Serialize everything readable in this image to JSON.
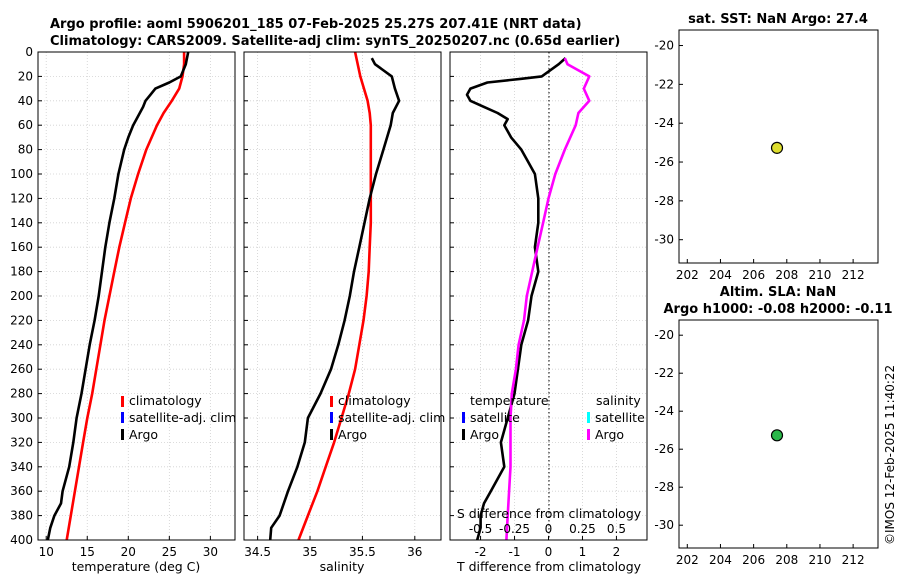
{
  "chart_data": [
    {
      "type": "line",
      "title": "Argo profile: aoml 5906201_185 07-Feb-2025 25.27S 207.41E (NRT data)",
      "subtitle": "Climatology: CARS2009. Satellite-adj clim: synTS_20250207.nc (0.65d earlier)",
      "xlabel": "temperature (deg C)",
      "ylabel": "",
      "xlim": [
        9,
        33
      ],
      "ylim": [
        400,
        0
      ],
      "xticks": [
        "10",
        "15",
        "20",
        "25",
        "30"
      ],
      "yticks": [
        "0",
        "20",
        "40",
        "60",
        "80",
        "100",
        "120",
        "140",
        "160",
        "180",
        "200",
        "220",
        "240",
        "260",
        "280",
        "300",
        "320",
        "340",
        "360",
        "380",
        "400"
      ],
      "grid": true,
      "legend": [
        "climatology",
        "satellite-adj. clim",
        "Argo"
      ],
      "legend_colors": [
        "#ff0000",
        "#0000ff",
        "#000000"
      ],
      "series": [
        {
          "name": "climatology",
          "color": "#ff0000",
          "depth": [
            0,
            10,
            20,
            30,
            40,
            50,
            60,
            80,
            100,
            120,
            140,
            160,
            180,
            200,
            220,
            240,
            260,
            280,
            300,
            320,
            340,
            360,
            380,
            400
          ],
          "values": [
            26.8,
            26.8,
            26.6,
            26.2,
            25.3,
            24.3,
            23.5,
            22.2,
            21.2,
            20.3,
            19.6,
            18.9,
            18.3,
            17.7,
            17.1,
            16.6,
            16.1,
            15.6,
            15.0,
            14.5,
            14.0,
            13.5,
            13.0,
            12.5
          ]
        },
        {
          "name": "Argo",
          "color": "#000000",
          "depth": [
            0,
            10,
            20,
            25,
            30,
            35,
            40,
            45,
            50,
            55,
            60,
            70,
            80,
            100,
            120,
            140,
            160,
            180,
            200,
            220,
            240,
            260,
            280,
            300,
            320,
            340,
            360,
            370,
            380,
            390,
            400
          ],
          "values": [
            27.3,
            27.0,
            26.4,
            25.0,
            23.3,
            22.7,
            22.1,
            21.8,
            21.4,
            21.0,
            20.6,
            20.0,
            19.5,
            18.8,
            18.3,
            17.7,
            17.2,
            16.8,
            16.4,
            15.9,
            15.3,
            14.8,
            14.3,
            13.7,
            13.3,
            12.8,
            12.0,
            11.8,
            11.0,
            10.5,
            10.2
          ]
        }
      ]
    },
    {
      "type": "line",
      "xlabel": "salinity",
      "xlim": [
        34.37,
        36.25
      ],
      "ylim": [
        400,
        0
      ],
      "xticks": [
        "34.5",
        "35",
        "35.5",
        "36"
      ],
      "grid": true,
      "legend": [
        "climatology",
        "satellite-adj. clim",
        "Argo"
      ],
      "legend_colors": [
        "#ff0000",
        "#0000ff",
        "#000000"
      ],
      "series": [
        {
          "name": "climatology",
          "color": "#ff0000",
          "depth": [
            0,
            20,
            40,
            50,
            60,
            80,
            100,
            120,
            140,
            160,
            180,
            200,
            220,
            240,
            260,
            280,
            300,
            320,
            340,
            360,
            380,
            400
          ],
          "values": [
            35.43,
            35.48,
            35.55,
            35.57,
            35.58,
            35.58,
            35.58,
            35.58,
            35.58,
            35.57,
            35.56,
            35.54,
            35.51,
            35.47,
            35.43,
            35.37,
            35.3,
            35.23,
            35.15,
            35.07,
            34.98,
            34.89
          ]
        },
        {
          "name": "Argo",
          "color": "#000000",
          "depth": [
            5,
            10,
            20,
            30,
            40,
            50,
            60,
            80,
            100,
            120,
            140,
            160,
            180,
            200,
            220,
            240,
            260,
            280,
            300,
            320,
            340,
            360,
            380,
            390,
            400
          ],
          "values": [
            35.59,
            35.62,
            35.78,
            35.81,
            35.85,
            35.79,
            35.77,
            35.7,
            35.63,
            35.57,
            35.52,
            35.47,
            35.42,
            35.38,
            35.33,
            35.27,
            35.2,
            35.1,
            34.98,
            34.95,
            34.88,
            34.79,
            34.71,
            34.63,
            34.62
          ]
        }
      ]
    },
    {
      "type": "line",
      "xlabel": "T difference from climatology",
      "secondary_xlabel": "S difference from climatology",
      "xlim": [
        -2.9,
        2.9
      ],
      "ylim": [
        400,
        0
      ],
      "xticks": [
        "-2",
        "-1",
        "0",
        "1",
        "2"
      ],
      "secondary_xticks": [
        "-0.5",
        "-0.25",
        "0",
        "0.25",
        "0.5"
      ],
      "grid": true,
      "legend_title_left": "temperature",
      "legend_title_right": "salinity",
      "legend_left": [
        "satellite",
        "Argo"
      ],
      "legend_left_colors": [
        "#0000ff",
        "#000000"
      ],
      "legend_right": [
        "satellite",
        "Argo"
      ],
      "legend_right_colors": [
        "#00ffff",
        "#ff00ff"
      ],
      "series": [
        {
          "name": "T difference (Argo)",
          "color": "#000000",
          "depth": [
            5,
            10,
            20,
            22,
            25,
            30,
            35,
            40,
            45,
            50,
            55,
            60,
            70,
            80,
            90,
            100,
            120,
            140,
            160,
            180,
            200,
            220,
            240,
            260,
            280,
            300,
            320,
            340,
            360,
            370,
            380,
            390,
            400
          ],
          "values": [
            0.5,
            0.3,
            -0.2,
            -0.8,
            -1.8,
            -2.3,
            -2.4,
            -2.3,
            -1.9,
            -1.5,
            -1.2,
            -1.3,
            -1.1,
            -0.8,
            -0.6,
            -0.4,
            -0.3,
            -0.3,
            -0.4,
            -0.3,
            -0.5,
            -0.6,
            -0.8,
            -0.9,
            -1.0,
            -1.2,
            -1.4,
            -1.3,
            -1.7,
            -1.9,
            -2.0,
            -2.0,
            -2.1
          ]
        },
        {
          "name": "S difference (Argo)",
          "color": "#ff00ff",
          "depth": [
            5,
            10,
            20,
            30,
            40,
            50,
            60,
            80,
            100,
            120,
            140,
            160,
            180,
            200,
            220,
            240,
            260,
            280,
            300,
            320,
            340,
            360,
            380,
            400
          ],
          "values": [
            0.12,
            0.14,
            0.3,
            0.26,
            0.3,
            0.22,
            0.2,
            0.12,
            0.05,
            0.0,
            -0.04,
            -0.08,
            -0.12,
            -0.16,
            -0.18,
            -0.22,
            -0.24,
            -0.27,
            -0.28,
            -0.28,
            -0.28,
            -0.29,
            -0.3,
            -0.31
          ]
        }
      ]
    },
    {
      "type": "scatter",
      "title": "sat. SST: NaN Argo: 27.4",
      "xlim": [
        201.5,
        213.5
      ],
      "ylim": [
        -31.2,
        -19.2
      ],
      "xticks": [
        "202",
        "204",
        "206",
        "208",
        "210",
        "212"
      ],
      "yticks": [
        "-20",
        "-22",
        "-24",
        "-26",
        "-28",
        "-30"
      ],
      "points": [
        {
          "x": 207.41,
          "y": -25.27,
          "color": "#dede2e"
        }
      ]
    },
    {
      "type": "scatter",
      "title": "Altim. SLA: NaN",
      "subtitle": "Argo h1000: -0.08 h2000: -0.11",
      "xlim": [
        201.5,
        213.5
      ],
      "ylim": [
        -31.2,
        -19.2
      ],
      "xticks": [
        "202",
        "204",
        "206",
        "208",
        "210",
        "212"
      ],
      "yticks": [
        "-20",
        "-22",
        "-24",
        "-26",
        "-28",
        "-30"
      ],
      "points": [
        {
          "x": 207.41,
          "y": -25.27,
          "color": "#2ab84a"
        }
      ]
    }
  ],
  "watermark": "©IMOS 12-Feb-2025 11:40:22"
}
